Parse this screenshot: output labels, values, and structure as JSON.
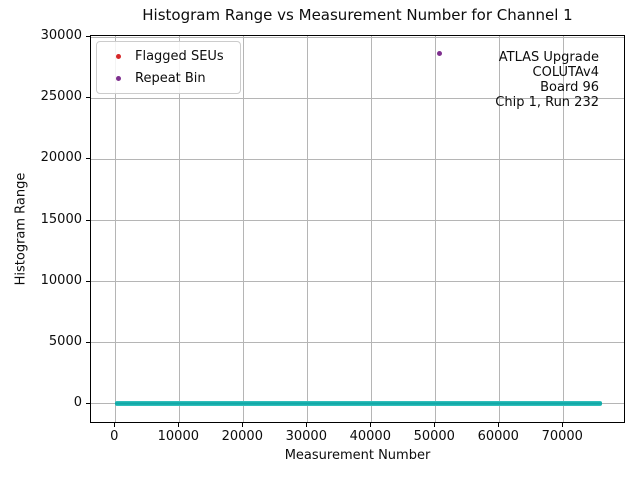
{
  "chart_data": {
    "type": "scatter",
    "title": "Histogram Range vs Measurement Number for Channel 1",
    "xlabel": "Measurement Number",
    "ylabel": "Histogram Range",
    "xlim": [
      -3800,
      79800
    ],
    "ylim": [
      -1650,
      30100
    ],
    "x_ticks": [
      0,
      10000,
      20000,
      30000,
      40000,
      50000,
      60000,
      70000
    ],
    "y_ticks": [
      0,
      5000,
      10000,
      15000,
      20000,
      25000,
      30000
    ],
    "grid": true,
    "grid_color": "#b5b5b5",
    "background_color": "#ffffff",
    "series": [
      {
        "name": "Histogram Range measurements",
        "style": "dense_band",
        "marker_color": "#20b2aa",
        "band": {
          "x_start": 0,
          "x_end": 76000,
          "y": 0
        },
        "description": "dense horizontal band of teal scatter points at histogram range ≈ 0 for all ~76000 measurements"
      },
      {
        "name": "Flagged SEUs",
        "style": "scatter",
        "marker_color": "#d62728",
        "points": []
      },
      {
        "name": "Repeat Bin",
        "style": "scatter",
        "marker_color": "#7e2f8e",
        "points": [
          {
            "x": 50600,
            "y": 28700
          }
        ]
      }
    ],
    "legend": {
      "position": "upper left",
      "entries": [
        {
          "label": "Flagged SEUs",
          "marker_color": "#d62728"
        },
        {
          "label": "Repeat Bin",
          "marker_color": "#7e2f8e"
        }
      ]
    },
    "annotation": {
      "position": "upper right",
      "align": "right",
      "lines": [
        "ATLAS Upgrade",
        "COLUTAv4",
        "Board 96",
        "Chip 1, Run 232"
      ]
    }
  }
}
